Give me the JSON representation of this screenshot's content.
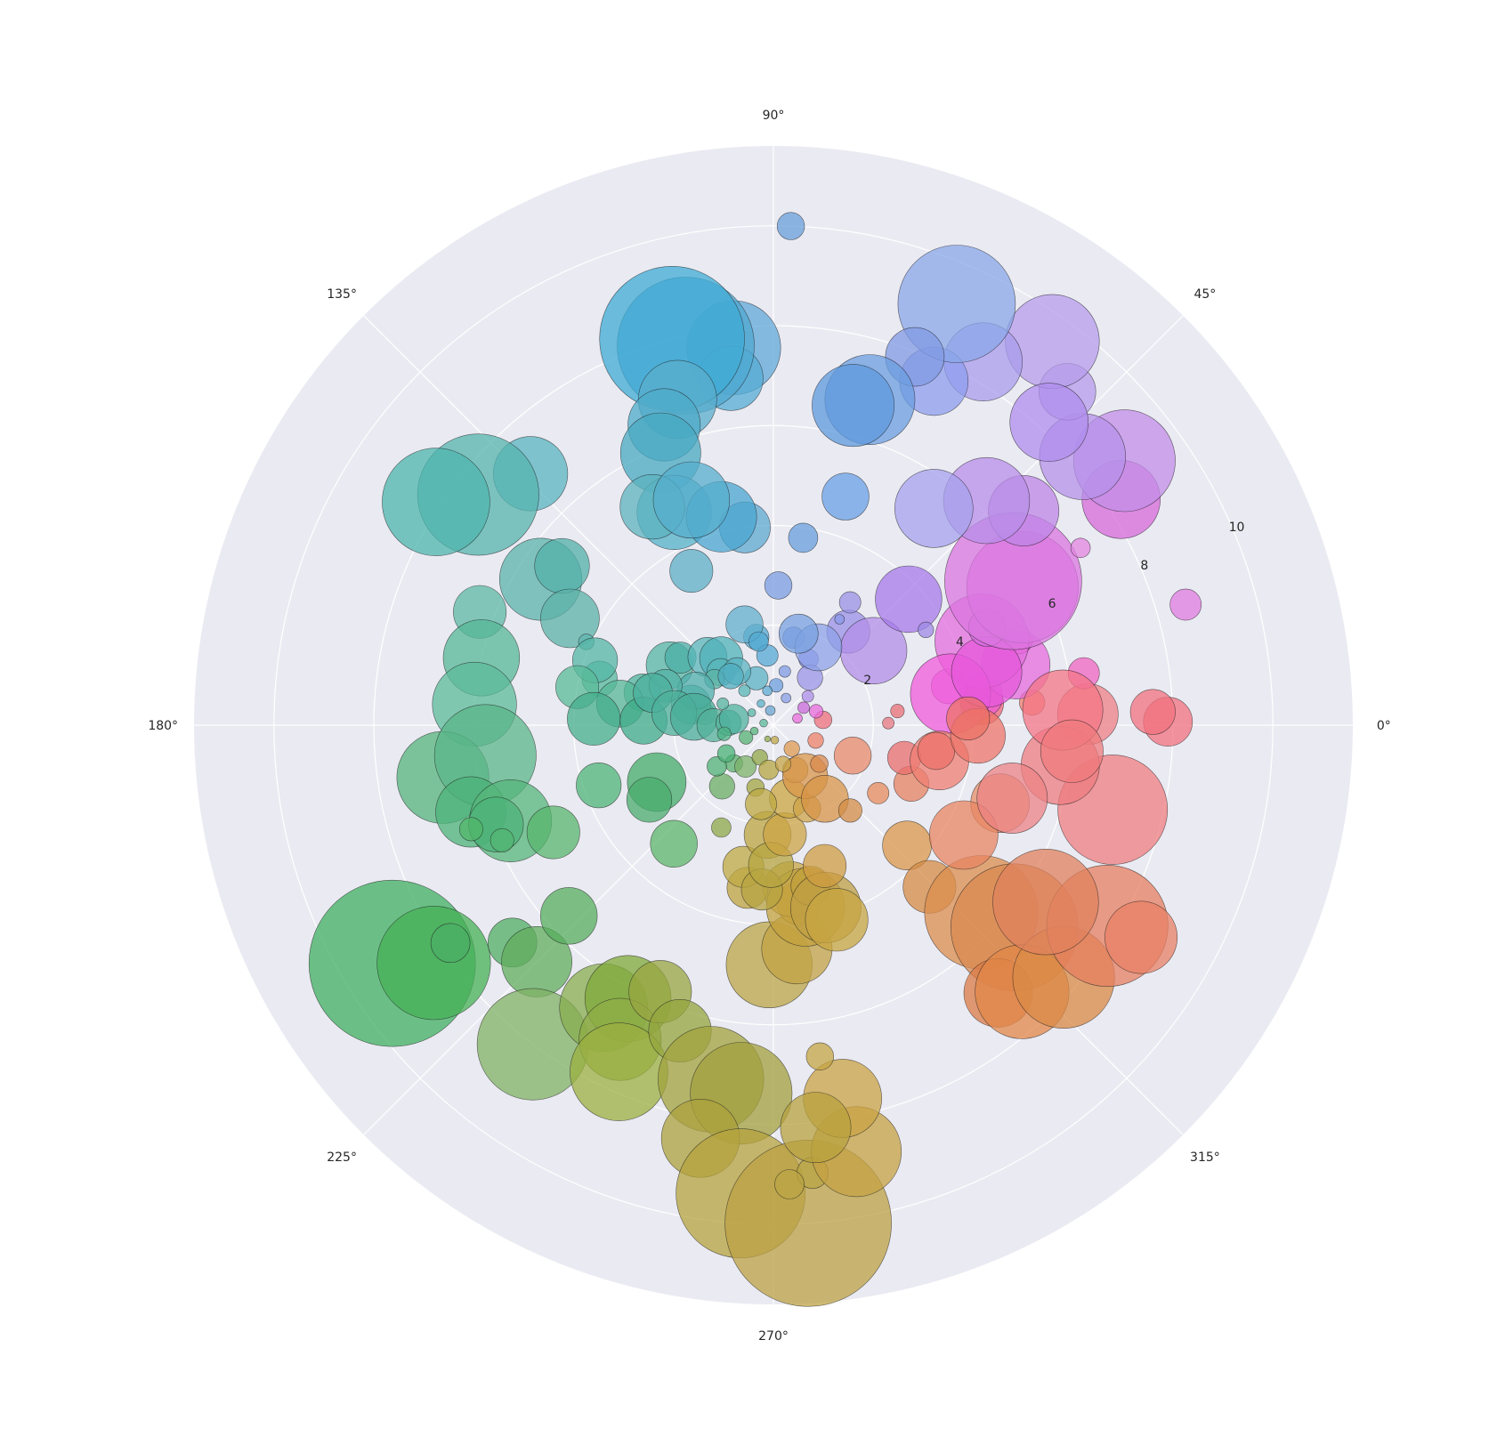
{
  "chart_data": {
    "type": "scatter",
    "projection": "polar",
    "title": "",
    "background": "#eaeaf2",
    "grid": true,
    "grid_color": "#ffffff",
    "rlim": [
      0,
      11.6
    ],
    "rticks": [
      2,
      4,
      6,
      8,
      10
    ],
    "rtick_labels": [
      "2",
      "4",
      "6",
      "8",
      "10"
    ],
    "rlabel_angle_deg": 22.5,
    "theta_ticks_deg": [
      0,
      45,
      90,
      135,
      180,
      225,
      270,
      315
    ],
    "theta_tick_labels": [
      "0°",
      "45°",
      "90°",
      "135°",
      "180°",
      "225°",
      "270°",
      "315°"
    ],
    "marker_alpha": 0.75,
    "marker_edge_color": "#222222",
    "color_encoding": "hue by angle",
    "color_hue_start_deg": 350,
    "point_fields": [
      "theta_deg",
      "r",
      "size",
      "color"
    ],
    "points": [
      [
        0.5,
        7.9,
        0.25,
        "#f1717f"
      ],
      [
        2.0,
        7.6,
        0.23,
        "#f1717f"
      ],
      [
        2.0,
        6.3,
        0.31,
        "#ef7f85"
      ],
      [
        5.0,
        5.2,
        0.13,
        "#f17e6e"
      ],
      [
        6.0,
        4.2,
        0.22,
        "#f0647b"
      ],
      [
        6.5,
        2.5,
        0.07,
        "#ea6f75"
      ],
      [
        1.0,
        2.3,
        0.06,
        "#e6777f"
      ],
      [
        9.5,
        6.3,
        0.16,
        "#f066c2"
      ],
      [
        7.9,
        4.2,
        0.22,
        "#ee5ad5"
      ],
      [
        16.3,
        8.6,
        0.16,
        "#e07ce0"
      ],
      [
        12.5,
        3.6,
        0.18,
        "#ea6bdd"
      ],
      [
        14.0,
        5.0,
        0.35,
        "#e56bde"
      ],
      [
        19.1,
        5.2,
        0.14,
        "#f055d9"
      ],
      [
        22.0,
        4.5,
        0.48,
        "#e36dde"
      ],
      [
        10.0,
        3.6,
        0.41,
        "#f05bdb"
      ],
      [
        14.0,
        4.4,
        0.36,
        "#e658db"
      ],
      [
        24.5,
        4.7,
        0.19,
        "#d46fdf"
      ],
      [
        29.0,
        5.7,
        0.57,
        "#d979e1"
      ],
      [
        31.0,
        5.6,
        0.7,
        "#db75e0"
      ],
      [
        30.0,
        7.1,
        0.1,
        "#e385e0"
      ],
      [
        33.0,
        8.3,
        0.4,
        "#d56ad9"
      ],
      [
        37.0,
        8.8,
        0.52,
        "#c38ee8"
      ],
      [
        41.0,
        8.2,
        0.44,
        "#b691ea"
      ],
      [
        40.6,
        6.6,
        0.36,
        "#bf86e7"
      ],
      [
        46.5,
        6.2,
        0.44,
        "#b88de8"
      ],
      [
        48.6,
        8.9,
        0.29,
        "#b79bec"
      ],
      [
        54.0,
        9.5,
        0.48,
        "#b59ceb"
      ],
      [
        47.7,
        8.2,
        0.4,
        "#b08ded"
      ],
      [
        60.0,
        8.4,
        0.4,
        "#aa9cec"
      ],
      [
        53.5,
        5.4,
        0.4,
        "#a6a1ee"
      ],
      [
        65.0,
        7.6,
        0.35,
        "#8e9ded"
      ],
      [
        66.5,
        9.2,
        0.6,
        "#8aa7e8"
      ],
      [
        69.0,
        7.9,
        0.3,
        "#8099e3"
      ],
      [
        73.5,
        6.8,
        0.46,
        "#6b9de0"
      ],
      [
        76.0,
        6.6,
        0.42,
        "#5e99dc"
      ],
      [
        88.0,
        10.0,
        0.14,
        "#6a9fda"
      ],
      [
        72.5,
        4.8,
        0.24,
        "#6aa0e6"
      ],
      [
        81.0,
        3.8,
        0.15,
        "#689fdc"
      ],
      [
        88.0,
        2.8,
        0.14,
        "#7b9ee3"
      ],
      [
        77.0,
        1.8,
        0.11,
        "#7997e3"
      ],
      [
        62.0,
        1.5,
        0.1,
        "#8693e6"
      ],
      [
        51.3,
        2.4,
        0.22,
        "#9a92e8"
      ],
      [
        36.6,
        2.5,
        0.34,
        "#b38de8"
      ],
      [
        43.0,
        3.7,
        0.34,
        "#a57ae9"
      ],
      [
        32.0,
        3.6,
        0.08,
        "#9e89e6"
      ],
      [
        58.0,
        2.9,
        0.11,
        "#9a91e6"
      ],
      [
        52.4,
        1.2,
        0.13,
        "#9b96e7"
      ],
      [
        60.0,
        1.8,
        0.24,
        "#8ea1e8"
      ],
      [
        74.6,
        1.9,
        0.2,
        "#78a1e0"
      ],
      [
        96.0,
        7.6,
        0.48,
        "#62a8d8"
      ],
      [
        98.2,
        4.0,
        0.26,
        "#5eaad0"
      ],
      [
        97.0,
        7.0,
        0.33,
        "#56acd4"
      ],
      [
        103.0,
        7.8,
        0.7,
        "#4fa8d0"
      ],
      [
        104.7,
        8.0,
        0.74,
        "#3fabd4"
      ],
      [
        106.4,
        6.8,
        0.4,
        "#5aaecc"
      ],
      [
        110.0,
        6.4,
        0.37,
        "#4dabc8"
      ],
      [
        112.5,
        5.9,
        0.41,
        "#48aac2"
      ],
      [
        115.0,
        4.7,
        0.38,
        "#53b1c8"
      ],
      [
        119.0,
        5.0,
        0.33,
        "#5cb3bf"
      ],
      [
        104.0,
        4.3,
        0.36,
        "#4aa6d0"
      ],
      [
        110.0,
        4.8,
        0.39,
        "#55aecc"
      ],
      [
        118.0,
        3.5,
        0.22,
        "#5eafc5"
      ],
      [
        134.0,
        7.0,
        0.38,
        "#59b4c0"
      ],
      [
        142.0,
        7.5,
        0.62,
        "#55b4ad"
      ],
      [
        146.5,
        8.1,
        0.55,
        "#4db5ad"
      ],
      [
        147.9,
        5.5,
        0.42,
        "#5bb3ab"
      ],
      [
        143.0,
        5.3,
        0.28,
        "#52b0a9"
      ],
      [
        152.3,
        4.6,
        0.3,
        "#5cb2a8"
      ],
      [
        156.0,
        4.1,
        0.08,
        "#5db5ad"
      ],
      [
        158.9,
        6.3,
        0.27,
        "#5db8a6"
      ],
      [
        167.0,
        6.0,
        0.39,
        "#55b796"
      ],
      [
        176.0,
        6.0,
        0.43,
        "#5cbb9a"
      ],
      [
        165.0,
        3.6,
        0.18,
        "#55b89c"
      ],
      [
        166.0,
        2.7,
        0.19,
        "#4db39b"
      ],
      [
        160.0,
        3.8,
        0.23,
        "#54b6a6"
      ],
      [
        169.0,
        4.0,
        0.22,
        "#5abb98"
      ],
      [
        172.0,
        3.1,
        0.24,
        "#57b797"
      ],
      [
        178.0,
        3.6,
        0.27,
        "#44ad8b"
      ],
      [
        178.0,
        2.6,
        0.24,
        "#3fab88"
      ],
      [
        171.0,
        1.4,
        0.11,
        "#5cbc9a"
      ],
      [
        166.0,
        1.7,
        0.2,
        "#5bb89d"
      ],
      [
        150.0,
        2.4,
        0.24,
        "#56b5a6"
      ],
      [
        144.0,
        2.3,
        0.16,
        "#4bafa6"
      ],
      [
        134.0,
        1.9,
        0.2,
        "#58b6b8"
      ],
      [
        128.0,
        1.7,
        0.22,
        "#4fb1b8"
      ],
      [
        135.0,
        1.5,
        0.14,
        "#59b5b9"
      ],
      [
        142.0,
        1.5,
        0.1,
        "#5cb4a5"
      ],
      [
        156.0,
        1.7,
        0.19,
        "#4fafac"
      ],
      [
        160.0,
        2.3,
        0.17,
        "#53b1a6"
      ],
      [
        165.0,
        2.5,
        0.2,
        "#4cb09e"
      ],
      [
        173.0,
        2.0,
        0.23,
        "#4cb09a"
      ],
      [
        174.0,
        1.6,
        0.24,
        "#49ad98"
      ],
      [
        180.0,
        1.2,
        0.17,
        "#53b29b"
      ],
      [
        177.0,
        0.9,
        0.13,
        "#52b29b"
      ],
      [
        171.0,
        0.8,
        0.15,
        "#4fb19f"
      ],
      [
        110.0,
        1.0,
        0.12,
        "#5ab2c4"
      ],
      [
        124.0,
        1.3,
        0.14,
        "#5bb4c0"
      ],
      [
        131.0,
        1.3,
        0.13,
        "#50aebf"
      ],
      [
        101.0,
        1.8,
        0.13,
        "#52a8d0"
      ],
      [
        95.0,
        1.4,
        0.11,
        "#55a8d4"
      ],
      [
        106.0,
        2.1,
        0.19,
        "#61afcc"
      ],
      [
        100.0,
        1.7,
        0.1,
        "#52a9d2"
      ],
      [
        86.0,
        0.8,
        0.07,
        "#6c9fde"
      ],
      [
        102.0,
        0.3,
        0.05,
        "#69a6d0"
      ],
      [
        168.0,
        0.2,
        0.04,
        "#5ab89a"
      ],
      [
        157.0,
        1.1,
        0.06,
        "#55b49f"
      ],
      [
        189.0,
        6.7,
        0.47,
        "#55b47e"
      ],
      [
        186.0,
        5.8,
        0.52,
        "#5ab588"
      ],
      [
        196.0,
        6.3,
        0.36,
        "#4cb37a"
      ],
      [
        200.0,
        5.6,
        0.42,
        "#55b679"
      ],
      [
        199.7,
        5.9,
        0.28,
        "#4cb378"
      ],
      [
        203.0,
        5.9,
        0.12,
        "#51b673"
      ],
      [
        206.0,
        4.9,
        0.27,
        "#58b66d"
      ],
      [
        199.0,
        6.4,
        0.12,
        "#50b66a"
      ],
      [
        199.0,
        3.7,
        0.23,
        "#4fb478"
      ],
      [
        206.0,
        2.6,
        0.3,
        "#44ab69"
      ],
      [
        211.0,
        2.9,
        0.23,
        "#4aac6e"
      ],
      [
        212.0,
        9.0,
        0.85,
        "#40b062"
      ],
      [
        215.0,
        8.3,
        0.58,
        "#46b056"
      ],
      [
        214.0,
        7.8,
        0.2,
        "#4aad65"
      ],
      [
        219.8,
        6.8,
        0.25,
        "#50ad63"
      ],
      [
        225.0,
        6.7,
        0.36,
        "#60ae5c"
      ],
      [
        223.0,
        5.6,
        0.29,
        "#56ad5d"
      ],
      [
        233.0,
        8.0,
        0.57,
        "#80b164"
      ],
      [
        239.0,
        6.6,
        0.45,
        "#88ad4f"
      ],
      [
        242.0,
        6.2,
        0.44,
        "#80a93a"
      ],
      [
        244.0,
        7.0,
        0.42,
        "#8fac47"
      ],
      [
        246.0,
        7.6,
        0.5,
        "#9bb040"
      ],
      [
        247.0,
        5.8,
        0.32,
        "#98a640"
      ],
      [
        253.0,
        6.4,
        0.32,
        "#94a53d"
      ],
      [
        260.0,
        7.2,
        0.54,
        "#a1a33d"
      ],
      [
        265.0,
        7.4,
        0.52,
        "#a3a03e"
      ],
      [
        260.0,
        8.4,
        0.4,
        "#aca13d"
      ],
      [
        266.0,
        9.4,
        0.66,
        "#b5a33e"
      ],
      [
        274.0,
        10.0,
        0.85,
        "#bca244"
      ],
      [
        275.0,
        9.0,
        0.16,
        "#b8a443"
      ],
      [
        272.0,
        9.2,
        0.15,
        "#b9a444"
      ],
      [
        281.0,
        8.7,
        0.46,
        "#c6a244"
      ],
      [
        280.5,
        7.6,
        0.4,
        "#c9a344"
      ],
      [
        278.0,
        6.7,
        0.14,
        "#c4a644"
      ],
      [
        276.0,
        8.1,
        0.36,
        "#b8a13d"
      ],
      [
        269.0,
        4.8,
        0.44,
        "#bba547"
      ],
      [
        276.0,
        4.5,
        0.36,
        "#c3a346"
      ],
      [
        278.0,
        3.6,
        0.22,
        "#ca9f3d"
      ],
      [
        276.0,
        3.3,
        0.28,
        "#c8a544"
      ],
      [
        280.0,
        3.7,
        0.4,
        "#c3a23e"
      ],
      [
        283.0,
        3.3,
        0.2,
        "#c09f3c"
      ],
      [
        286.0,
        3.8,
        0.36,
        "#bf9f44"
      ],
      [
        288.0,
        4.1,
        0.32,
        "#c7a642"
      ],
      [
        290.0,
        3.0,
        0.22,
        "#cd9c42"
      ],
      [
        261.0,
        3.3,
        0.21,
        "#bfa340"
      ],
      [
        258.0,
        2.9,
        0.21,
        "#bea944"
      ],
      [
        266.0,
        3.3,
        0.21,
        "#b7a441"
      ],
      [
        267.0,
        2.2,
        0.24,
        "#bba43f"
      ],
      [
        269.0,
        2.8,
        0.23,
        "#b7a640"
      ],
      [
        276.0,
        2.2,
        0.22,
        "#cca444"
      ],
      [
        282.0,
        1.5,
        0.2,
        "#c9a63f"
      ],
      [
        292.0,
        1.8,
        0.14,
        "#cda348"
      ],
      [
        296.0,
        1.0,
        0.13,
        "#cc9b4c"
      ],
      [
        302.0,
        1.2,
        0.23,
        "#d99549"
      ],
      [
        305.0,
        1.8,
        0.24,
        "#d79447"
      ],
      [
        312.0,
        2.3,
        0.12,
        "#d48c47"
      ],
      [
        318.0,
        3.6,
        0.25,
        "#d9974a"
      ],
      [
        314.0,
        4.5,
        0.27,
        "#d68b44"
      ],
      [
        318.0,
        5.6,
        0.58,
        "#db8e4d"
      ],
      [
        320.0,
        6.3,
        0.65,
        "#da8a50"
      ],
      [
        310.0,
        7.0,
        0.35,
        "#db7b45"
      ],
      [
        313.0,
        7.3,
        0.48,
        "#e28748"
      ],
      [
        319.0,
        7.7,
        0.52,
        "#d98a45"
      ],
      [
        329.0,
        7.8,
        0.62,
        "#e57f60"
      ],
      [
        330.0,
        8.5,
        0.37,
        "#e88065"
      ],
      [
        327.0,
        6.5,
        0.54,
        "#e0825e"
      ],
      [
        341.0,
        4.8,
        0.3,
        "#e58f68"
      ],
      [
        330.0,
        4.4,
        0.35,
        "#e88662"
      ],
      [
        337.0,
        3.0,
        0.18,
        "#e68260"
      ],
      [
        339.0,
        1.7,
        0.19,
        "#e8896a"
      ],
      [
        346.0,
        2.7,
        0.17,
        "#ea6d6d"
      ],
      [
        348.0,
        3.4,
        0.3,
        "#ef7f73"
      ],
      [
        351.0,
        3.3,
        0.19,
        "#ec7068"
      ],
      [
        357.0,
        4.1,
        0.28,
        "#ed7469"
      ],
      [
        2.0,
        3.9,
        0.22,
        "#ec7166"
      ],
      [
        346.0,
        7.0,
        0.56,
        "#ef7e80"
      ],
      [
        352.0,
        5.8,
        0.4,
        "#ee7c80"
      ],
      [
        343.0,
        5.0,
        0.36,
        "#ec8386"
      ],
      [
        3.0,
        5.8,
        0.41,
        "#f47686"
      ],
      [
        355.0,
        6.0,
        0.32,
        "#ef7b7d"
      ],
      [
        327.0,
        2.5,
        0.11,
        "#e68b5c"
      ],
      [
        308.0,
        0.6,
        0.08,
        "#dd9a52"
      ],
      [
        320.0,
        1.2,
        0.09,
        "#d98a4d"
      ],
      [
        340.0,
        0.9,
        0.08,
        "#ed8068"
      ],
      [
        6.0,
        1.0,
        0.09,
        "#ed6f7b"
      ],
      [
        18.0,
        0.9,
        0.07,
        "#e96bdc"
      ],
      [
        30.0,
        0.7,
        0.06,
        "#c96ad9"
      ],
      [
        224.0,
        1.1,
        0.09,
        "#5ab06e"
      ],
      [
        236.0,
        1.0,
        0.11,
        "#7db36a"
      ],
      [
        247.0,
        0.7,
        0.08,
        "#90a747"
      ],
      [
        230.0,
        1.6,
        0.13,
        "#69ae63"
      ],
      [
        216.0,
        1.4,
        0.1,
        "#52b175"
      ],
      [
        243.0,
        2.3,
        0.1,
        "#8ea849"
      ],
      [
        230.0,
        3.1,
        0.24,
        "#5cb66b"
      ],
      [
        254.0,
        1.3,
        0.09,
        "#a3a643"
      ],
      [
        264.0,
        0.9,
        0.1,
        "#b6a543"
      ],
      [
        261.0,
        1.6,
        0.16,
        "#bda842"
      ],
      [
        284.0,
        0.8,
        0.08,
        "#c7a64a"
      ],
      [
        190.0,
        1.0,
        0.07,
        "#4db284"
      ],
      [
        204.0,
        0.6,
        0.07,
        "#55b273"
      ],
      [
        211.0,
        1.1,
        0.09,
        "#4ab176"
      ],
      [
        197.0,
        0.4,
        0.04,
        "#55b37c"
      ],
      [
        247.0,
        0.3,
        0.03,
        "#8fac4b"
      ],
      [
        275.0,
        0.3,
        0.04,
        "#bda647"
      ],
      [
        16.0,
        0.5,
        0.05,
        "#e96ddc"
      ],
      [
        40.0,
        0.9,
        0.06,
        "#ad8de8"
      ],
      [
        65.0,
        0.6,
        0.05,
        "#8a9fe4"
      ],
      [
        100.0,
        0.7,
        0.05,
        "#5dabd4"
      ],
      [
        130.0,
        0.9,
        0.06,
        "#57b5b6"
      ],
      [
        150.0,
        0.5,
        0.04,
        "#57b7a6"
      ],
      [
        120.0,
        0.5,
        0.04,
        "#59b0c6"
      ],
      [
        78.0,
        1.1,
        0.06,
        "#7d9be2"
      ],
      [
        58.0,
        2.5,
        0.05,
        "#8a99e8"
      ]
    ]
  }
}
